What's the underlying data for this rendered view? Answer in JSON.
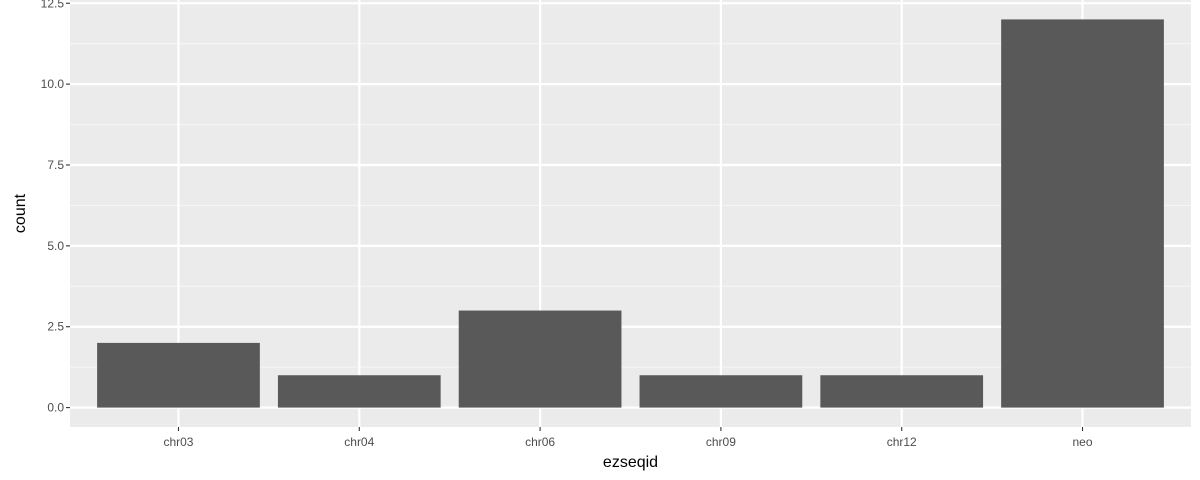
{
  "chart_data": {
    "type": "bar",
    "categories": [
      "chr03",
      "chr04",
      "chr06",
      "chr09",
      "chr12",
      "neo"
    ],
    "values": [
      2,
      1,
      3,
      1,
      1,
      12
    ],
    "title": "",
    "xlabel": "ezseqid",
    "ylabel": "count",
    "ylim": [
      -0.6,
      12.6
    ],
    "yticks": [
      0,
      2.5,
      5,
      7.5,
      10,
      12.5
    ],
    "ytick_labels": [
      "0.0",
      "2.5",
      "5.0",
      "7.5",
      "10.0",
      "12.5"
    ],
    "grid": true,
    "legend": "none"
  },
  "colors": {
    "panel_background": "#ebebeb",
    "grid_major": "#ffffff",
    "grid_minor": "#f5f5f5",
    "bar_fill": "#595959",
    "tick_mark": "#333333",
    "tick_text": "#4d4d4d",
    "axis_title": "#000000"
  }
}
